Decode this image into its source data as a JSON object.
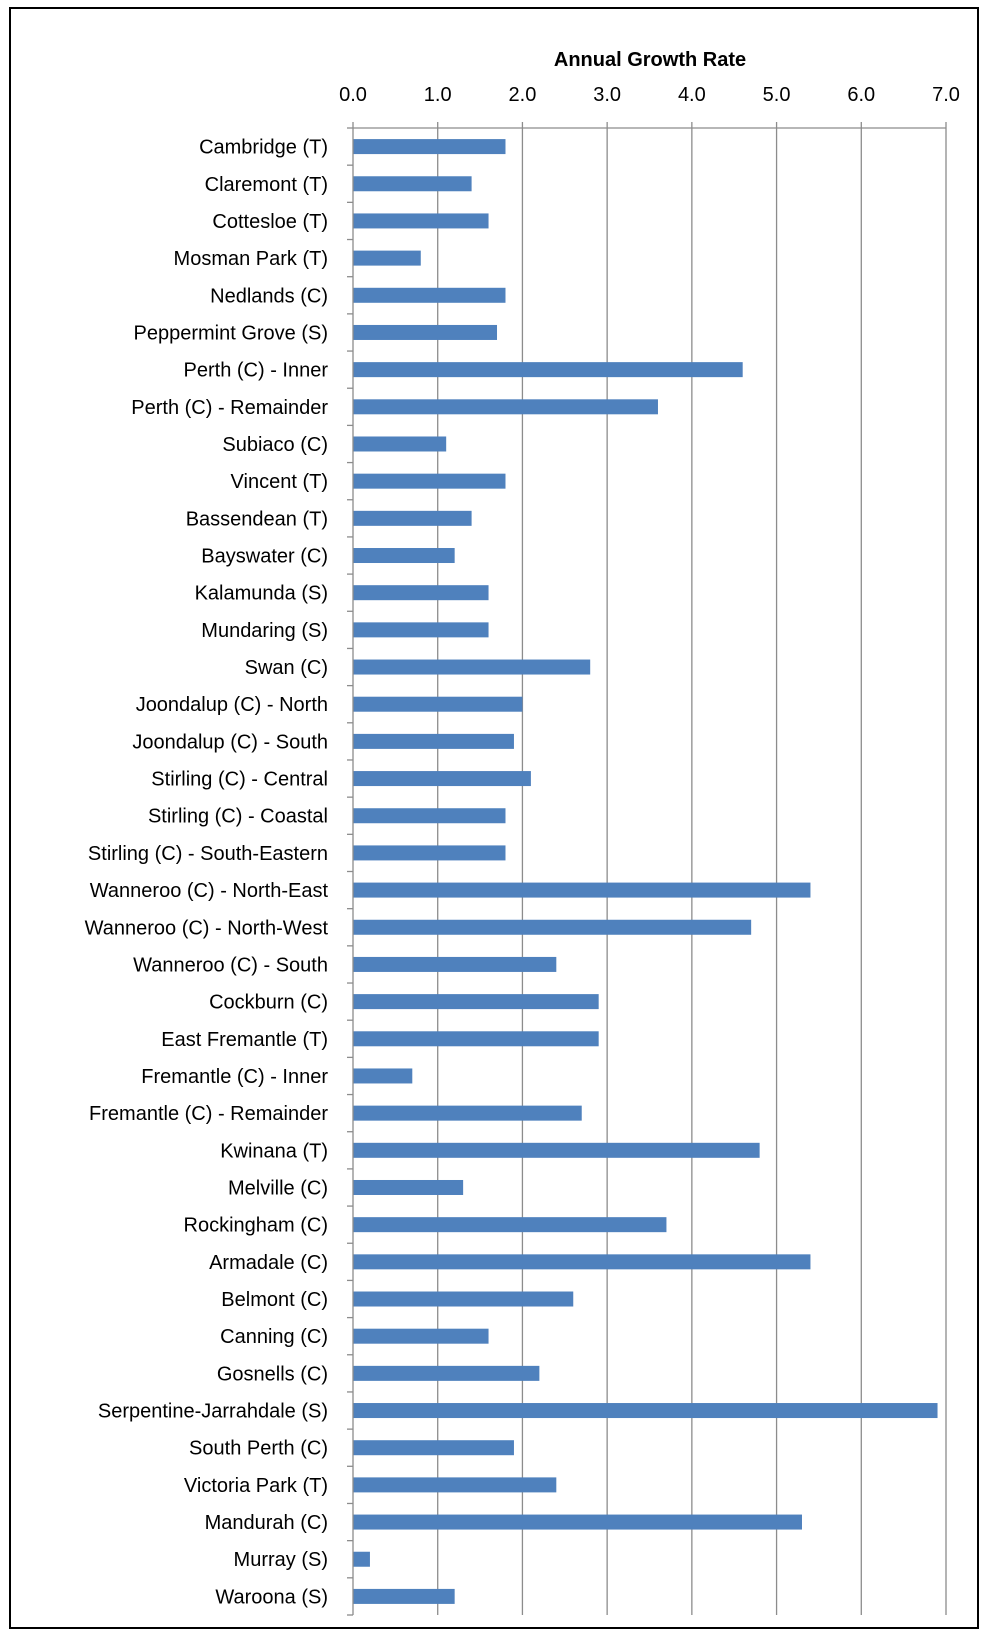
{
  "chart_data": {
    "type": "bar",
    "orientation": "horizontal",
    "title": "Annual Growth Rate",
    "xlim": [
      0,
      7
    ],
    "xticks": [
      "0.0",
      "1.0",
      "2.0",
      "3.0",
      "4.0",
      "5.0",
      "6.0",
      "7.0"
    ],
    "grid": true,
    "bar_color": "#4F81BD",
    "categories": [
      "Cambridge (T)",
      "Claremont (T)",
      "Cottesloe (T)",
      "Mosman Park (T)",
      "Nedlands (C)",
      "Peppermint Grove (S)",
      "Perth (C) - Inner",
      "Perth (C) - Remainder",
      "Subiaco (C)",
      "Vincent (T)",
      "Bassendean (T)",
      "Bayswater (C)",
      "Kalamunda (S)",
      "Mundaring (S)",
      "Swan (C)",
      "Joondalup (C) - North",
      "Joondalup (C) - South",
      "Stirling (C) - Central",
      "Stirling (C) - Coastal",
      "Stirling (C) - South-Eastern",
      "Wanneroo (C) - North-East",
      "Wanneroo (C) - North-West",
      "Wanneroo (C) - South",
      "Cockburn (C)",
      "East Fremantle (T)",
      "Fremantle (C) - Inner",
      "Fremantle (C) - Remainder",
      "Kwinana (T)",
      "Melville (C)",
      "Rockingham (C)",
      "Armadale (C)",
      "Belmont (C)",
      "Canning (C)",
      "Gosnells (C)",
      "Serpentine-Jarrahdale (S)",
      "South Perth (C)",
      "Victoria Park (T)",
      "Mandurah (C)",
      "Murray (S)",
      "Waroona (S)"
    ],
    "values": [
      1.8,
      1.4,
      1.6,
      0.8,
      1.8,
      1.7,
      4.6,
      3.6,
      1.1,
      1.8,
      1.4,
      1.2,
      1.6,
      1.6,
      2.8,
      2.0,
      1.9,
      2.1,
      1.8,
      1.8,
      5.4,
      4.7,
      2.4,
      2.9,
      2.9,
      0.7,
      2.7,
      4.8,
      1.3,
      3.7,
      5.4,
      2.6,
      1.6,
      2.2,
      6.9,
      1.9,
      2.4,
      5.3,
      0.2,
      1.2
    ]
  }
}
